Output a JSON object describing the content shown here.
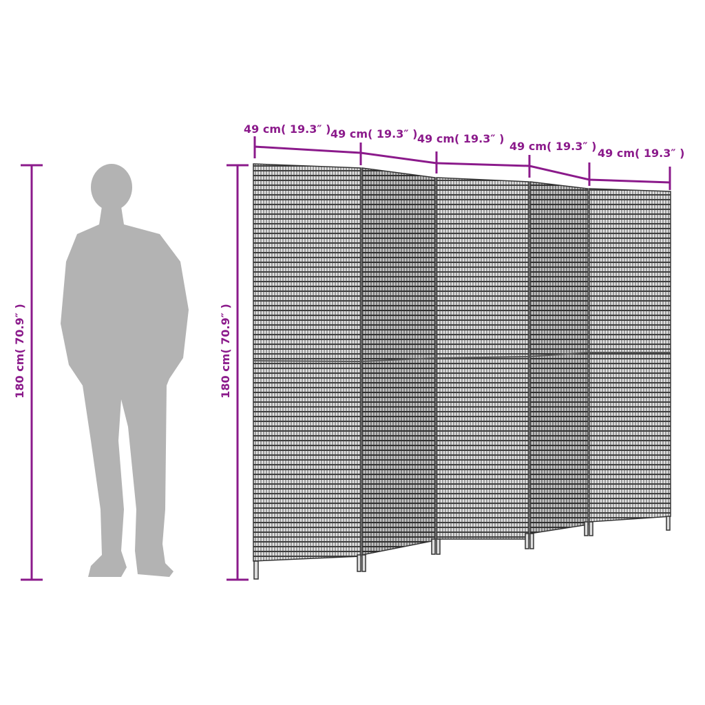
{
  "colors": {
    "dimension": "#8b1a8b",
    "silhouette": "#b3b3b3",
    "panel": "#8a8a8a"
  },
  "width_labels": [
    "49 cm( 19.3″ )",
    "49 cm( 19.3″ )",
    "49 cm( 19.3″ )",
    "49 cm( 19.3″ )",
    "49 cm( 19.3″ )"
  ],
  "height_label_person": "180 cm( 70.9″ )",
  "height_label_screen": "180 cm( 70.9″ )",
  "panel_count": 5
}
